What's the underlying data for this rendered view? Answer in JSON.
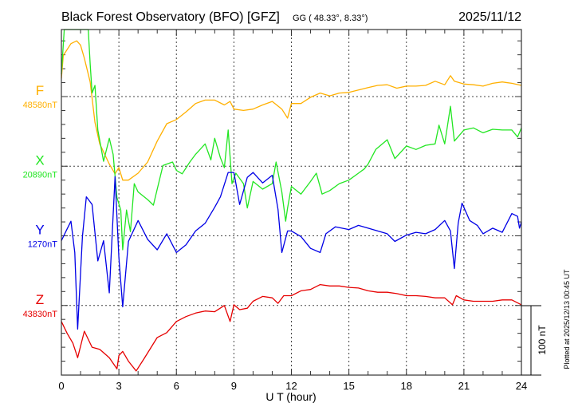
{
  "chart_data": {
    "type": "line",
    "title": "Black Forest Observatory (BFO)  [GFZ]",
    "coords_label": "GG ( 48.33°,   8.33°)",
    "date": "2025/11/12",
    "xlabel": "U T (hour)",
    "xlim": [
      0,
      24
    ],
    "xticks": [
      "0",
      "3",
      "6",
      "9",
      "12",
      "15",
      "18",
      "21",
      "24"
    ],
    "units": "nT (deviation from listed baseline)",
    "scale_bar_label": "100 nT",
    "plotted_note": "Plotted at 2025/12/13 00:45 UT",
    "grid": true,
    "series": [
      {
        "name": "F",
        "baseline_label": "48580nT",
        "color": "#ffb000",
        "stack_offset": 0,
        "x": [
          0,
          0.1,
          0.5,
          0.8,
          1,
          1.2,
          1.5,
          1.75,
          2,
          2.5,
          2.8,
          3,
          3.2,
          3.5,
          4,
          4.5,
          5,
          5.5,
          6,
          6.5,
          7,
          7.5,
          8,
          8.5,
          8.8,
          9,
          9.5,
          10,
          10.5,
          11,
          11.5,
          11.8,
          12,
          12.5,
          13,
          13.5,
          14,
          14.5,
          15,
          16,
          16.5,
          17,
          17.5,
          18,
          18.5,
          19,
          19.5,
          20,
          20.3,
          20.5,
          21,
          21.5,
          22,
          22.5,
          23,
          23.5,
          24
        ],
        "values": [
          26,
          59,
          76,
          80,
          74,
          55,
          21,
          -37,
          -68,
          -97,
          -111,
          -102,
          -120,
          -120,
          -110,
          -94,
          -64,
          -39,
          -33,
          -22,
          -10,
          -5,
          -5,
          -12,
          -7,
          -18,
          -20,
          -18,
          -12,
          -7,
          -18,
          -31,
          -10,
          -10,
          -1,
          5,
          1,
          5,
          6,
          13,
          16,
          17,
          12,
          15,
          15,
          16,
          22,
          17,
          30,
          22,
          18,
          17,
          15,
          19,
          21,
          19,
          16
        ]
      },
      {
        "name": "X",
        "baseline_label": "20890nT",
        "color": "#22e622",
        "stack_offset": -100,
        "x": [
          0,
          0.15,
          0.5,
          1,
          1.4,
          1.5,
          1.6,
          1.75,
          1.9,
          2.2,
          2.5,
          2.7,
          2.9,
          3.1,
          3.2,
          3.4,
          3.6,
          3.8,
          4,
          4.5,
          4.8,
          5,
          5.3,
          5.8,
          6,
          6.3,
          6.7,
          7,
          7.5,
          7.8,
          8,
          8.3,
          8.5,
          8.7,
          8.9,
          9.1,
          9.5,
          9.7,
          10,
          10.5,
          11,
          11.2,
          11.5,
          11.7,
          11.8,
          12,
          12.5,
          13,
          13.3,
          13.6,
          14,
          14.5,
          15,
          15.5,
          15.8,
          16,
          16.4,
          17,
          17.4,
          18,
          18.5,
          19,
          19.5,
          19.7,
          20,
          20.3,
          20.5,
          21,
          21.5,
          22,
          22.5,
          23,
          23.5,
          23.8,
          24
        ],
        "values": [
          132,
          200,
          200,
          200,
          197,
          147,
          105,
          116,
          52,
          7,
          40,
          17,
          -45,
          -63,
          -120,
          -63,
          -94,
          -25,
          -37,
          -48,
          -56,
          -33,
          1,
          6,
          -6,
          -11,
          6,
          17,
          32,
          9,
          40,
          12,
          -2,
          52,
          -25,
          -10,
          -25,
          -60,
          -22,
          -33,
          -25,
          6,
          -37,
          -79,
          -60,
          -29,
          -40,
          -22,
          -10,
          -40,
          -35,
          -25,
          -20,
          -10,
          -4,
          3,
          24,
          38,
          11,
          29,
          24,
          30,
          32,
          59,
          32,
          86,
          36,
          52,
          55,
          48,
          53,
          52,
          52,
          42,
          55
        ]
      },
      {
        "name": "Y",
        "baseline_label": "1270nT",
        "color": "#0000e6",
        "stack_offset": -200,
        "x": [
          0,
          0.3,
          0.5,
          0.7,
          0.85,
          1.1,
          1.3,
          1.6,
          1.9,
          2.2,
          2.5,
          2.8,
          3,
          3.2,
          3.5,
          4,
          4.5,
          5,
          5.5,
          6,
          6.5,
          7,
          7.5,
          8,
          8.3,
          8.7,
          9,
          9.3,
          9.7,
          10,
          10.5,
          11,
          11.3,
          11.5,
          11.8,
          12,
          12.5,
          13,
          13.5,
          13.8,
          14.3,
          15,
          15.5,
          16,
          16.5,
          17,
          17.4,
          18,
          18.5,
          19,
          19.5,
          20,
          20.3,
          20.5,
          20.7,
          20.9,
          21.3,
          21.7,
          22,
          22.5,
          23,
          23.5,
          23.8,
          23.9,
          24
        ],
        "values": [
          -7,
          10,
          21,
          -24,
          -134,
          -1,
          56,
          45,
          -36,
          -7,
          -82,
          85,
          -31,
          -102,
          -8,
          22,
          -5,
          -20,
          3,
          -24,
          -13,
          7,
          18,
          41,
          56,
          91,
          91,
          45,
          84,
          91,
          76,
          87,
          38,
          -24,
          7,
          7,
          -1,
          -18,
          -24,
          3,
          13,
          9,
          15,
          11,
          7,
          3,
          -8,
          1,
          5,
          3,
          9,
          22,
          7,
          -47,
          18,
          47,
          22,
          15,
          3,
          11,
          5,
          32,
          28,
          11,
          20
        ]
      },
      {
        "name": "Z",
        "baseline_label": "43830nT",
        "color": "#e60000",
        "stack_offset": -300,
        "x": [
          0,
          0.3,
          0.6,
          0.85,
          1.2,
          1.6,
          2,
          2.5,
          2.9,
          3,
          3.2,
          3.5,
          3.9,
          4.3,
          5,
          5.5,
          6,
          6.5,
          7,
          7.5,
          8,
          8.5,
          8.8,
          9,
          9.3,
          9.7,
          10,
          10.5,
          11,
          11.3,
          11.6,
          12,
          12.5,
          13,
          13.5,
          14,
          14.5,
          15,
          15.5,
          16,
          16.5,
          17,
          17.5,
          18,
          18.5,
          19,
          19.5,
          20,
          20.4,
          20.6,
          21,
          21.5,
          22,
          22.5,
          23,
          23.5,
          24
        ],
        "values": [
          -23,
          -40,
          -54,
          -75,
          -37,
          -60,
          -63,
          -75,
          -91,
          -72,
          -66,
          -80,
          -94,
          -77,
          -46,
          -39,
          -23,
          -16,
          -11,
          -8,
          -9,
          0,
          -23,
          1,
          -6,
          -4,
          6,
          13,
          11,
          3,
          14,
          14,
          21,
          23,
          30,
          28,
          28,
          26,
          25,
          21,
          19,
          19,
          17,
          14,
          14,
          13,
          11,
          11,
          1,
          14,
          8,
          6,
          6,
          6,
          8,
          8,
          1
        ]
      }
    ]
  }
}
